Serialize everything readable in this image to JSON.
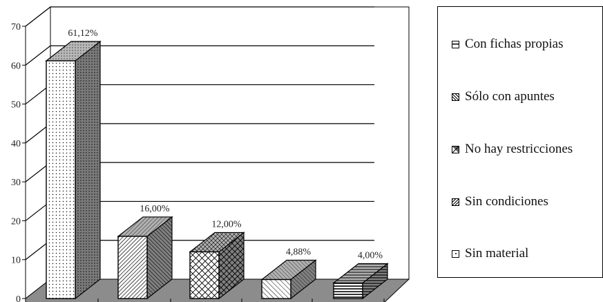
{
  "chart_data": {
    "type": "bar",
    "categories": [
      "",
      "",
      "",
      "",
      ""
    ],
    "values": [
      61.12,
      16.0,
      12.0,
      4.88,
      4.0
    ],
    "data_labels": [
      "61,12%",
      "16,00%",
      "12,00%",
      "4,88%",
      "4,00%"
    ],
    "ylim": [
      0,
      70
    ],
    "yticks": [
      0,
      10,
      20,
      30,
      40,
      50,
      60,
      70
    ],
    "ytick_labels": [
      "0",
      "10",
      "20",
      "30",
      "40",
      "50",
      "60",
      "70"
    ],
    "grid": "horizontal",
    "three_d": true,
    "legend": {
      "placement": "right",
      "entries": [
        "Con fichas propias",
        "Sólo con apuntes",
        "No hay restricciones",
        "Sin condiciones",
        "Sin material"
      ]
    }
  },
  "colors": {
    "floor": "#8c8c8c",
    "bar_front": "#ffffff",
    "bar_side": "#808080",
    "bar_top": "#b0b0b0"
  }
}
